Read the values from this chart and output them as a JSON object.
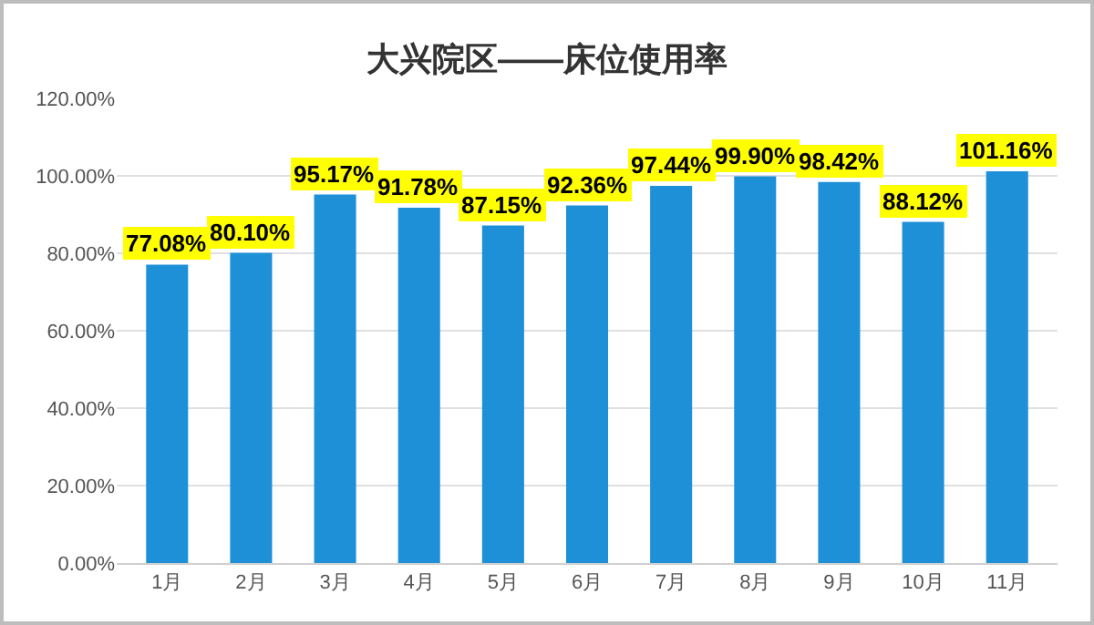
{
  "chart_data": {
    "type": "bar",
    "title": "大兴院区——床位使用率",
    "categories": [
      "1月",
      "2月",
      "3月",
      "4月",
      "5月",
      "6月",
      "7月",
      "8月",
      "9月",
      "10月",
      "11月"
    ],
    "values": [
      77.08,
      80.1,
      95.17,
      91.78,
      87.15,
      92.36,
      97.44,
      99.9,
      98.42,
      88.12,
      101.16
    ],
    "value_labels": [
      "77.08%",
      "80.10%",
      "95.17%",
      "91.78%",
      "87.15%",
      "92.36%",
      "97.44%",
      "99.90%",
      "98.42%",
      "88.12%",
      "101.16%"
    ],
    "color": "#1e90d8",
    "ylim": [
      0,
      120
    ],
    "yticks": [
      {
        "value": 0,
        "label": "0.00%"
      },
      {
        "value": 20,
        "label": "20.00%"
      },
      {
        "value": 40,
        "label": "40.00%"
      },
      {
        "value": 60,
        "label": "60.00%"
      },
      {
        "value": 80,
        "label": "80.00%"
      },
      {
        "value": 100,
        "label": "100.00%"
      },
      {
        "value": 120,
        "label": "120.00%"
      }
    ],
    "grid": "y"
  }
}
